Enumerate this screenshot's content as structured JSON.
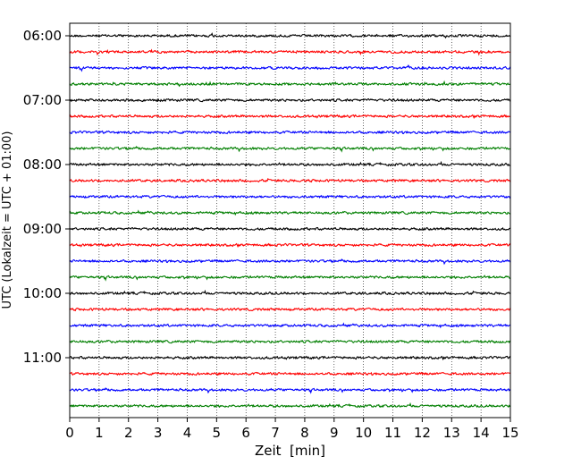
{
  "chart_data": {
    "type": "line",
    "subtype": "seismic-helicorder",
    "xlabel": "Zeit  [min]",
    "ylabel": "UTC (Lokalzeit = UTC + 01:00)",
    "xlim": [
      0,
      15
    ],
    "x_ticks": [
      0,
      1,
      2,
      3,
      4,
      5,
      6,
      7,
      8,
      9,
      10,
      11,
      12,
      13,
      14,
      15
    ],
    "y_tick_labels": [
      "06:00",
      "07:00",
      "08:00",
      "09:00",
      "10:00",
      "11:00"
    ],
    "vertical_grid": "dotted",
    "trace_colors": [
      "#000000",
      "#ff0000",
      "#0000ff",
      "#007f00"
    ],
    "traces": [
      {
        "start": "06:00",
        "color": "#000000"
      },
      {
        "start": "06:15",
        "color": "#ff0000"
      },
      {
        "start": "06:30",
        "color": "#0000ff"
      },
      {
        "start": "06:45",
        "color": "#007f00"
      },
      {
        "start": "07:00",
        "color": "#000000"
      },
      {
        "start": "07:15",
        "color": "#ff0000"
      },
      {
        "start": "07:30",
        "color": "#0000ff"
      },
      {
        "start": "07:45",
        "color": "#007f00"
      },
      {
        "start": "08:00",
        "color": "#000000"
      },
      {
        "start": "08:15",
        "color": "#ff0000"
      },
      {
        "start": "08:30",
        "color": "#0000ff"
      },
      {
        "start": "08:45",
        "color": "#007f00"
      },
      {
        "start": "09:00",
        "color": "#000000"
      },
      {
        "start": "09:15",
        "color": "#ff0000"
      },
      {
        "start": "09:30",
        "color": "#0000ff"
      },
      {
        "start": "09:45",
        "color": "#007f00"
      },
      {
        "start": "10:00",
        "color": "#000000"
      },
      {
        "start": "10:15",
        "color": "#ff0000"
      },
      {
        "start": "10:30",
        "color": "#0000ff"
      },
      {
        "start": "10:45",
        "color": "#007f00"
      },
      {
        "start": "11:00",
        "color": "#000000"
      },
      {
        "start": "11:15",
        "color": "#ff0000"
      },
      {
        "start": "11:30",
        "color": "#0000ff"
      },
      {
        "start": "11:45",
        "color": "#007f00"
      }
    ]
  }
}
